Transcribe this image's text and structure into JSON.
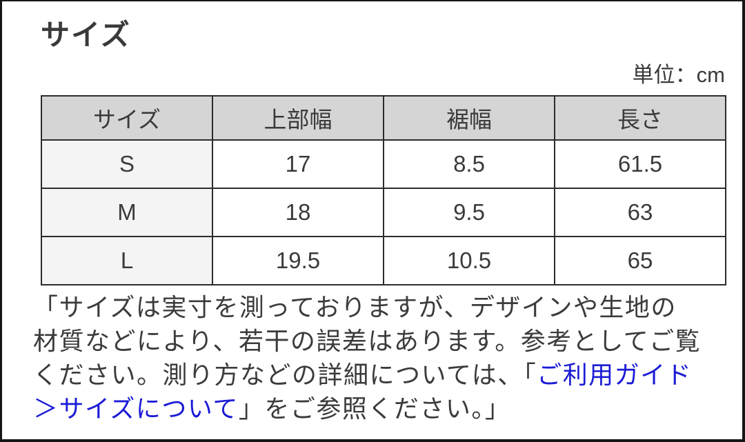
{
  "page": {
    "title": "サイズ",
    "unit_label": "単位：cm"
  },
  "size_table": {
    "headers": [
      "サイズ",
      "上部幅",
      "裾幅",
      "長さ"
    ],
    "rows": [
      {
        "size": "S",
        "top_width": "17",
        "hem_width": "8.5",
        "length": "61.5"
      },
      {
        "size": "M",
        "top_width": "18",
        "hem_width": "9.5",
        "length": "63"
      },
      {
        "size": "L",
        "top_width": "19.5",
        "hem_width": "10.5",
        "length": "65"
      }
    ]
  },
  "note": {
    "line1": "「サイズは実寸を測っておりますが、デザインや生地の",
    "line2": "材質などにより、若干の誤差はあります。参考としてご覧",
    "line3_text": "ください。測り方などの詳細については、「",
    "line3_link": "ご利用ガイド",
    "line4_link": "＞サイズについて",
    "line4_text": "」をご参照ください。」"
  },
  "colors": {
    "link_blue": "#1b1bd6",
    "header_bg": "#d5d5d5",
    "label_col_bg": "#f4f4f4",
    "table_border": "#2b2b2b",
    "text": "#3a3a3a"
  }
}
